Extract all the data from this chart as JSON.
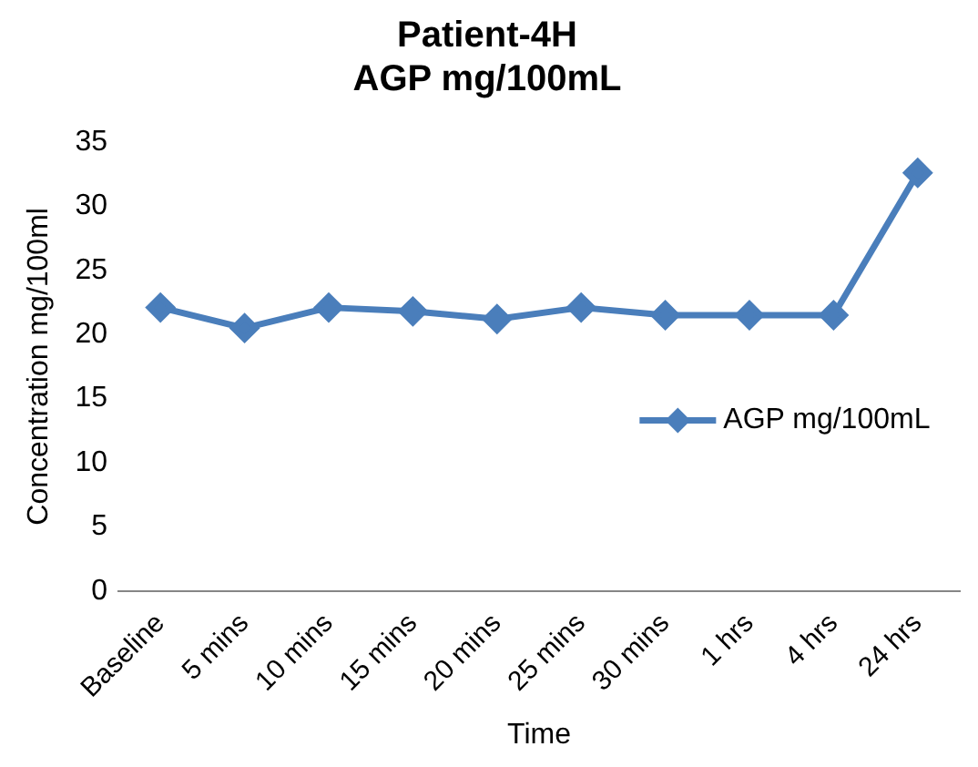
{
  "chart_data": {
    "type": "line",
    "title": "Patient-4H\nAGP mg/100mL",
    "xlabel": "Time",
    "ylabel": "Concentration mg/100ml",
    "categories": [
      "Baseline",
      "5 mins",
      "10 mins",
      "15 mins",
      "20 mins",
      "25 mins",
      "30 mins",
      "1 hrs",
      "4 hrs",
      "24 hrs"
    ],
    "series": [
      {
        "name": "AGP mg/100mL",
        "color": "#4a7ebb",
        "values": [
          22.1,
          20.5,
          22.1,
          21.8,
          21.2,
          22.1,
          21.5,
          21.5,
          21.5,
          32.6
        ]
      }
    ],
    "ylim": [
      0,
      35
    ],
    "yticks": [
      0,
      5,
      10,
      15,
      20,
      25,
      30,
      35
    ],
    "grid": false,
    "legend": "right",
    "marker": "diamond",
    "line_style": "solid"
  }
}
